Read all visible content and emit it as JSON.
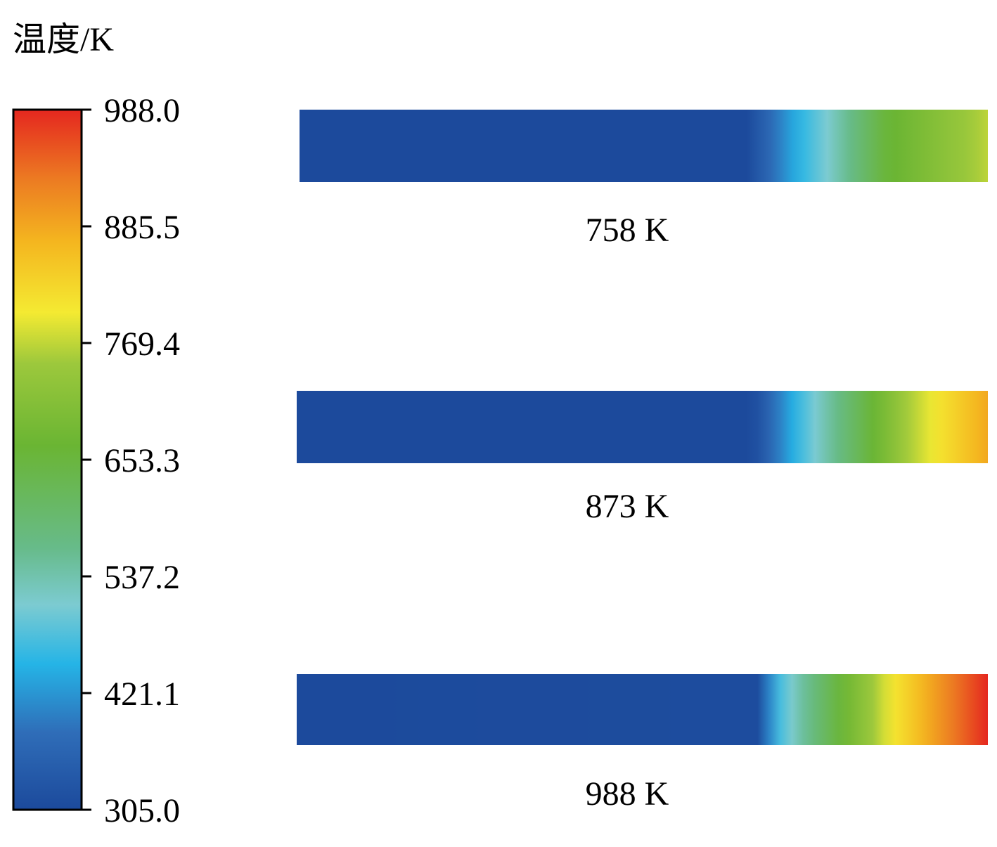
{
  "chart_data": {
    "type": "heatmap",
    "title": "温度/K",
    "colorbar": {
      "min": 305.0,
      "max": 988.0,
      "ticks": [
        "988.0",
        "885.5",
        "769.4",
        "653.3",
        "537.2",
        "421.1",
        "305.0"
      ],
      "tick_values": [
        988.0,
        885.5,
        769.4,
        653.3,
        537.2,
        421.1,
        305.0
      ],
      "colors": [
        {
          "value": 305.0,
          "color": "#1c4a9c"
        },
        {
          "value": 380.0,
          "color": "#2f6db8"
        },
        {
          "value": 447.0,
          "color": "#25b4e6"
        },
        {
          "value": 505.0,
          "color": "#7ccbd1"
        },
        {
          "value": 560.0,
          "color": "#67bb8a"
        },
        {
          "value": 660.0,
          "color": "#6ab533"
        },
        {
          "value": 740.0,
          "color": "#9cc83c"
        },
        {
          "value": 790.0,
          "color": "#f4ea32"
        },
        {
          "value": 860.0,
          "color": "#f4b51f"
        },
        {
          "value": 920.0,
          "color": "#ec7b22"
        },
        {
          "value": 988.0,
          "color": "#e5271f"
        }
      ]
    },
    "series": [
      {
        "name": "758 K",
        "profile": [
          {
            "pos": 0.0,
            "temp": 305
          },
          {
            "pos": 0.65,
            "temp": 305
          },
          {
            "pos": 0.72,
            "temp": 440
          },
          {
            "pos": 0.77,
            "temp": 510
          },
          {
            "pos": 0.85,
            "temp": 650
          },
          {
            "pos": 1.0,
            "temp": 758
          }
        ]
      },
      {
        "name": "873 K",
        "profile": [
          {
            "pos": 0.0,
            "temp": 305
          },
          {
            "pos": 0.66,
            "temp": 305
          },
          {
            "pos": 0.72,
            "temp": 447
          },
          {
            "pos": 0.78,
            "temp": 560
          },
          {
            "pos": 0.88,
            "temp": 740
          },
          {
            "pos": 0.93,
            "temp": 800
          },
          {
            "pos": 1.0,
            "temp": 873
          }
        ]
      },
      {
        "name": "988 K",
        "profile": [
          {
            "pos": 0.0,
            "temp": 305
          },
          {
            "pos": 0.67,
            "temp": 310
          },
          {
            "pos": 0.69,
            "temp": 447
          },
          {
            "pos": 0.73,
            "temp": 540
          },
          {
            "pos": 0.79,
            "temp": 660
          },
          {
            "pos": 0.86,
            "temp": 790
          },
          {
            "pos": 0.92,
            "temp": 880
          },
          {
            "pos": 1.0,
            "temp": 988
          }
        ]
      }
    ]
  }
}
